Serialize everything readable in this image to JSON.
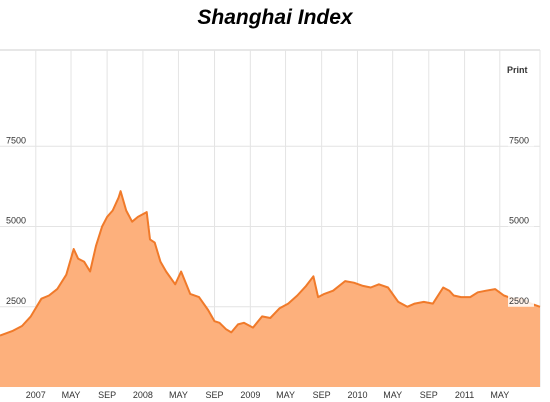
{
  "chart_data": {
    "type": "area",
    "title": "Shanghai Index",
    "xlabel": "",
    "ylabel": "",
    "ylim": [
      0,
      10500
    ],
    "xlim": [
      "2006-09-01",
      "2011-09-15"
    ],
    "grid": true,
    "legend": "none",
    "colors": {
      "line": "#f07a2a",
      "fill": "#fdb07c",
      "grid": "#e4e4e4"
    },
    "y_ticks": [
      {
        "value": 2500,
        "label": "2500"
      },
      {
        "value": 5000,
        "label": "5000"
      },
      {
        "value": 7500,
        "label": "7500"
      }
    ],
    "x_ticks": [
      {
        "value": "2007-01-01",
        "label": "2007"
      },
      {
        "value": "2007-05-01",
        "label": "MAY"
      },
      {
        "value": "2007-09-01",
        "label": "SEP"
      },
      {
        "value": "2008-01-01",
        "label": "2008"
      },
      {
        "value": "2008-05-01",
        "label": "MAY"
      },
      {
        "value": "2008-09-01",
        "label": "SEP"
      },
      {
        "value": "2009-01-01",
        "label": "2009"
      },
      {
        "value": "2009-05-01",
        "label": "MAY"
      },
      {
        "value": "2009-09-01",
        "label": "SEP"
      },
      {
        "value": "2010-01-01",
        "label": "2010"
      },
      {
        "value": "2010-05-01",
        "label": "MAY"
      },
      {
        "value": "2010-09-01",
        "label": "SEP"
      },
      {
        "value": "2011-01-01",
        "label": "2011"
      },
      {
        "value": "2011-05-01",
        "label": "MAY"
      }
    ],
    "series": [
      {
        "x": [
          "2006-09-01",
          "2006-10-15",
          "2006-11-15",
          "2006-12-15",
          "2007-01-20",
          "2007-02-15",
          "2007-03-15",
          "2007-04-15",
          "2007-05-10",
          "2007-05-25",
          "2007-06-15",
          "2007-07-05",
          "2007-07-25",
          "2007-08-15",
          "2007-09-01",
          "2007-09-20",
          "2007-10-10",
          "2007-10-17",
          "2007-11-05",
          "2007-11-25",
          "2007-12-15",
          "2008-01-14",
          "2008-01-25",
          "2008-02-10",
          "2008-03-01",
          "2008-03-20",
          "2008-04-20",
          "2008-05-10",
          "2008-06-10",
          "2008-07-10",
          "2008-08-10",
          "2008-09-01",
          "2008-09-18",
          "2008-10-10",
          "2008-10-28",
          "2008-11-20",
          "2008-12-10",
          "2009-01-10",
          "2009-02-10",
          "2009-03-10",
          "2009-04-10",
          "2009-05-10",
          "2009-06-10",
          "2009-07-10",
          "2009-08-04",
          "2009-08-20",
          "2009-09-10",
          "2009-10-10",
          "2009-11-20",
          "2009-12-20",
          "2010-01-20",
          "2010-02-15",
          "2010-03-15",
          "2010-04-15",
          "2010-05-20",
          "2010-06-20",
          "2010-07-15",
          "2010-08-15",
          "2010-09-15",
          "2010-10-20",
          "2010-11-10",
          "2010-11-25",
          "2010-12-20",
          "2011-01-20",
          "2011-02-15",
          "2011-03-15",
          "2011-04-15",
          "2011-05-15",
          "2011-06-15",
          "2011-07-15",
          "2011-08-15",
          "2011-09-15"
        ],
        "values": [
          1600,
          1750,
          1900,
          2200,
          2750,
          2850,
          3050,
          3500,
          4300,
          4000,
          3900,
          3600,
          4400,
          5000,
          5300,
          5500,
          5900,
          6100,
          5500,
          5150,
          5300,
          5450,
          4600,
          4500,
          3900,
          3600,
          3200,
          3600,
          2900,
          2800,
          2400,
          2050,
          2000,
          1800,
          1700,
          1950,
          2000,
          1850,
          2200,
          2150,
          2450,
          2600,
          2850,
          3150,
          3450,
          2800,
          2900,
          3000,
          3300,
          3250,
          3150,
          3100,
          3200,
          3100,
          2650,
          2500,
          2600,
          2650,
          2600,
          3100,
          3000,
          2850,
          2800,
          2800,
          2950,
          3000,
          3050,
          2850,
          2750,
          2750,
          2600,
          2500
        ]
      }
    ]
  },
  "toolbar": {
    "print_label": "Print"
  }
}
